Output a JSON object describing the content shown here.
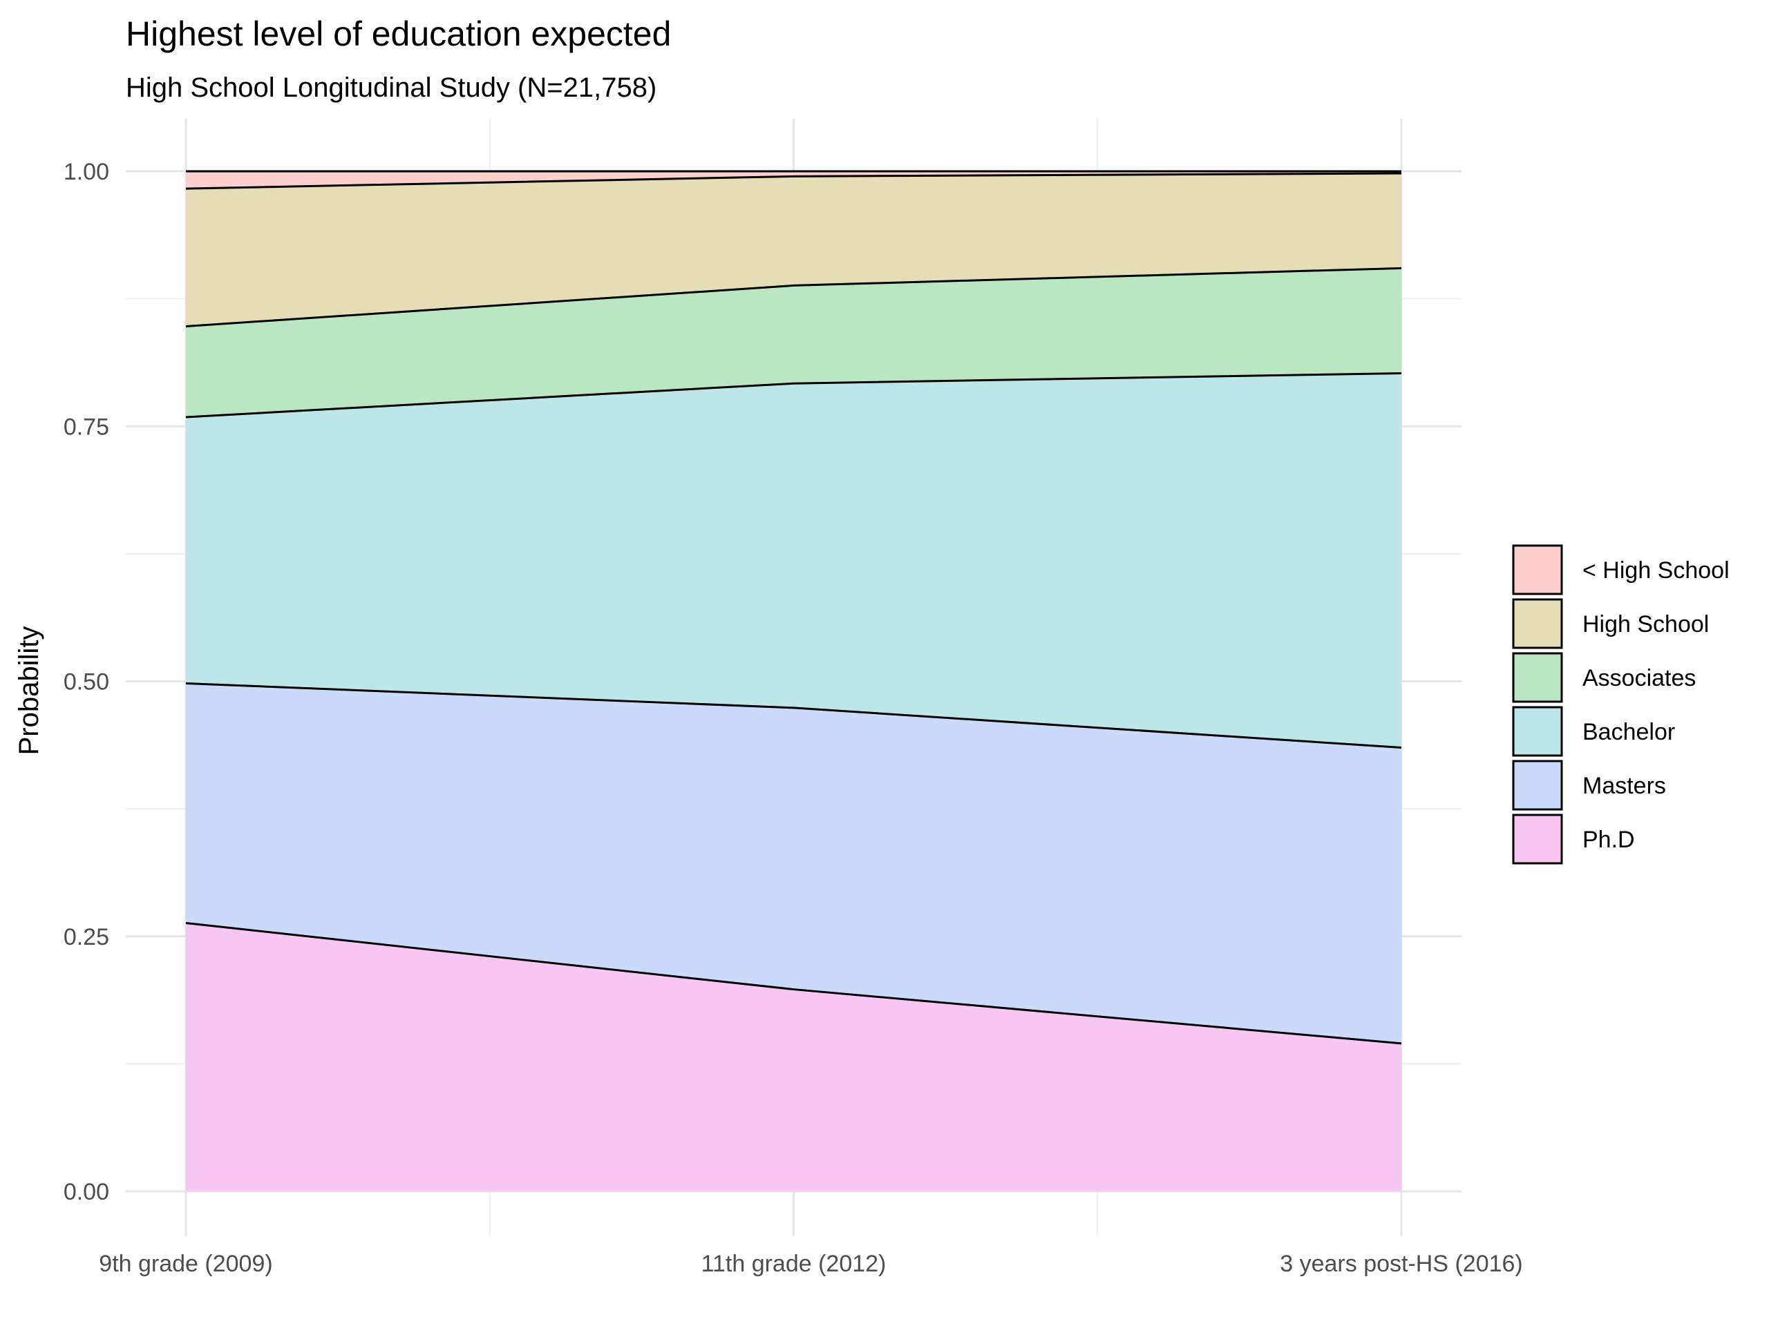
{
  "chart_data": {
    "type": "area",
    "title": "Highest level of education expected",
    "subtitle": "High School Longitudinal Study (N=21,758)",
    "xlabel": "",
    "ylabel": "Probability",
    "categories": [
      "9th grade (2009)",
      "11th grade (2012)",
      "3 years post-HS (2016)"
    ],
    "ylim": [
      0,
      1
    ],
    "y_ticks": [
      "0.00",
      "0.25",
      "0.50",
      "0.75",
      "1.00"
    ],
    "stacked": true,
    "grid": true,
    "legend_position": "right",
    "series": [
      {
        "name": "Ph.D",
        "color": "#f8c6f2",
        "values": [
          0.263,
          0.198,
          0.145
        ]
      },
      {
        "name": "Masters",
        "color": "#cbd9fb",
        "values": [
          0.235,
          0.276,
          0.29
        ]
      },
      {
        "name": "Bachelor",
        "color": "#bce6e8",
        "values": [
          0.261,
          0.318,
          0.367
        ]
      },
      {
        "name": "Associates",
        "color": "#bae6c1",
        "values": [
          0.089,
          0.096,
          0.103
        ]
      },
      {
        "name": "High School",
        "color": "#e5ddb5",
        "values": [
          0.135,
          0.107,
          0.093
        ]
      },
      {
        "name": "< High School",
        "color": "#fbcfcd",
        "values": [
          0.017,
          0.005,
          0.002
        ]
      }
    ],
    "legend_order": [
      "< High School",
      "High School",
      "Associates",
      "Bachelor",
      "Masters",
      "Ph.D"
    ]
  }
}
